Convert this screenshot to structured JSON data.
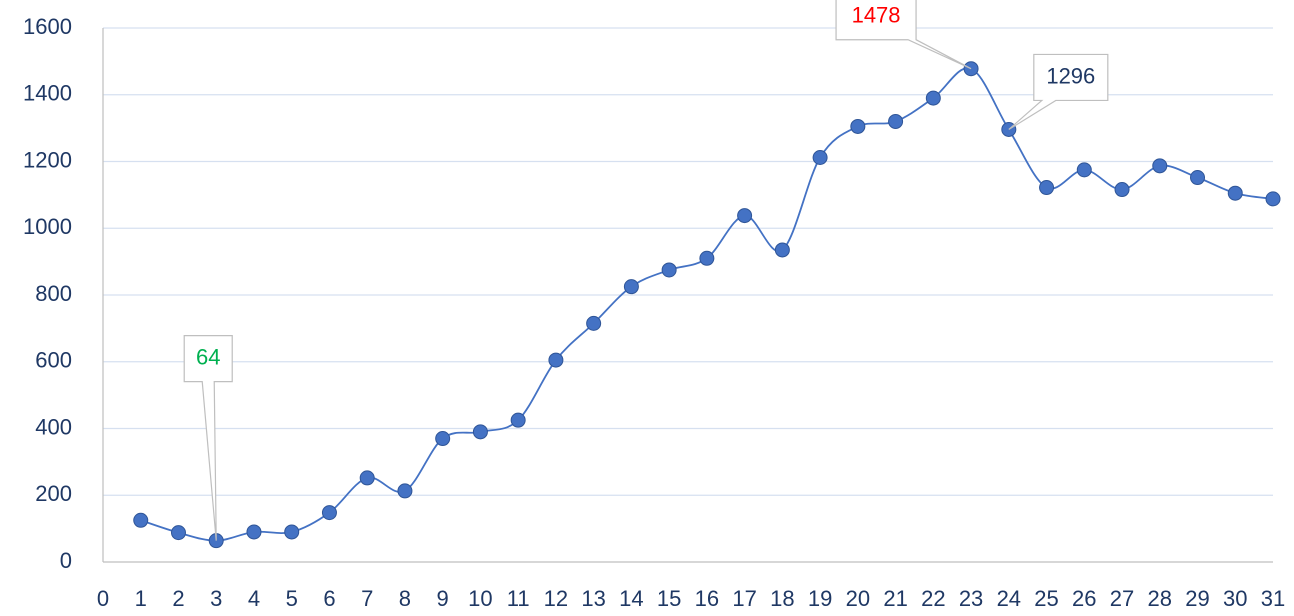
{
  "chart_data": {
    "type": "line",
    "x": [
      1,
      2,
      3,
      4,
      5,
      6,
      7,
      8,
      9,
      10,
      11,
      12,
      13,
      14,
      15,
      16,
      17,
      18,
      19,
      20,
      21,
      22,
      23,
      24,
      25,
      26,
      27,
      28,
      29,
      30,
      31
    ],
    "values": [
      125,
      88,
      64,
      90,
      90,
      148,
      252,
      213,
      370,
      390,
      425,
      605,
      715,
      825,
      875,
      910,
      1038,
      935,
      1212,
      1305,
      1320,
      1390,
      1478,
      1296,
      1122,
      1175,
      1116,
      1187,
      1152,
      1105,
      1088
    ],
    "label_colors": [
      null,
      null,
      "#00b050",
      null,
      null,
      null,
      null,
      null,
      null,
      null,
      null,
      null,
      null,
      null,
      null,
      null,
      null,
      null,
      null,
      null,
      null,
      null,
      "#ff0000",
      "#1f3864",
      null,
      null,
      null,
      null,
      null,
      null,
      null
    ],
    "color": "#4472c4",
    "xlim": [
      0,
      31
    ],
    "xticks": [
      0,
      1,
      2,
      3,
      4,
      5,
      6,
      7,
      8,
      9,
      10,
      11,
      12,
      13,
      14,
      15,
      16,
      17,
      18,
      19,
      20,
      21,
      22,
      23,
      24,
      25,
      26,
      27,
      28,
      29,
      30,
      31
    ],
    "ylim": [
      0,
      1600
    ],
    "yticks": [
      0,
      200,
      400,
      600,
      800,
      1000,
      1200,
      1400,
      1600
    ],
    "grid": true
  }
}
